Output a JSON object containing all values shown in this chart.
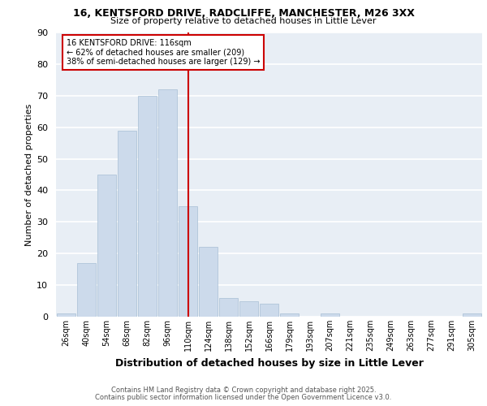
{
  "title1": "16, KENTSFORD DRIVE, RADCLIFFE, MANCHESTER, M26 3XX",
  "title2": "Size of property relative to detached houses in Little Lever",
  "xlabel": "Distribution of detached houses by size in Little Lever",
  "ylabel": "Number of detached properties",
  "categories": [
    "26sqm",
    "40sqm",
    "54sqm",
    "68sqm",
    "82sqm",
    "96sqm",
    "110sqm",
    "124sqm",
    "138sqm",
    "152sqm",
    "166sqm",
    "179sqm",
    "193sqm",
    "207sqm",
    "221sqm",
    "235sqm",
    "249sqm",
    "263sqm",
    "277sqm",
    "291sqm",
    "305sqm"
  ],
  "values": [
    1,
    17,
    45,
    59,
    70,
    72,
    35,
    22,
    6,
    5,
    4,
    1,
    0,
    1,
    0,
    0,
    0,
    0,
    0,
    0,
    1
  ],
  "bar_color": "#ccdaeb",
  "bar_edge_color": "#a8bfd4",
  "vline_x_index": 6.0,
  "annotation_title": "16 KENTSFORD DRIVE: 116sqm",
  "annotation_line1": "← 62% of detached houses are smaller (209)",
  "annotation_line2": "38% of semi-detached houses are larger (129) →",
  "vline_color": "#cc0000",
  "annotation_box_color": "#cc0000",
  "ylim": [
    0,
    90
  ],
  "yticks": [
    0,
    10,
    20,
    30,
    40,
    50,
    60,
    70,
    80,
    90
  ],
  "footer1": "Contains HM Land Registry data © Crown copyright and database right 2025.",
  "footer2": "Contains public sector information licensed under the Open Government Licence v3.0.",
  "bg_color": "#e8eef5"
}
